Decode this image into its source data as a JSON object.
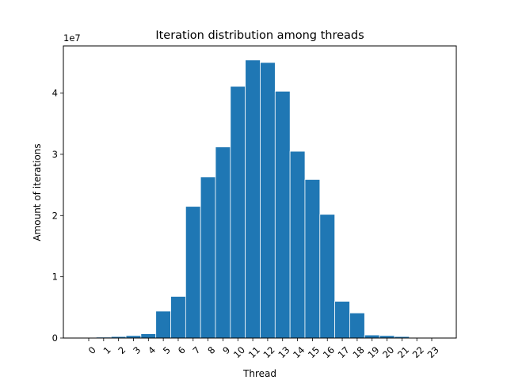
{
  "chart_data": {
    "type": "bar",
    "title": "Iteration distribution among threads",
    "xlabel": "Thread",
    "ylabel": "Amount of iterations",
    "y_multiplier_label": "1e7",
    "y_multiplier": 10000000,
    "categories": [
      "0",
      "1",
      "2",
      "3",
      "4",
      "5",
      "6",
      "7",
      "8",
      "9",
      "10",
      "11",
      "12",
      "13",
      "14",
      "15",
      "16",
      "17",
      "18",
      "19",
      "20",
      "21",
      "22",
      "23"
    ],
    "values": [
      100000,
      150000,
      250000,
      400000,
      700000,
      4400000,
      6800000,
      21500000,
      26300000,
      31200000,
      41100000,
      45400000,
      45000000,
      40300000,
      30500000,
      25900000,
      20200000,
      6000000,
      4100000,
      500000,
      400000,
      250000,
      100000,
      50000
    ],
    "ylim": [
      0,
      47700000
    ],
    "yticks": [
      0,
      10000000,
      20000000,
      30000000,
      40000000
    ],
    "ytick_labels": [
      "0",
      "1",
      "2",
      "3",
      "4"
    ],
    "xtick_rotation_deg": 45,
    "bar_color": "#1f77b4",
    "bar_edge_color": "#ffffff",
    "grid": false,
    "legend": "none"
  }
}
